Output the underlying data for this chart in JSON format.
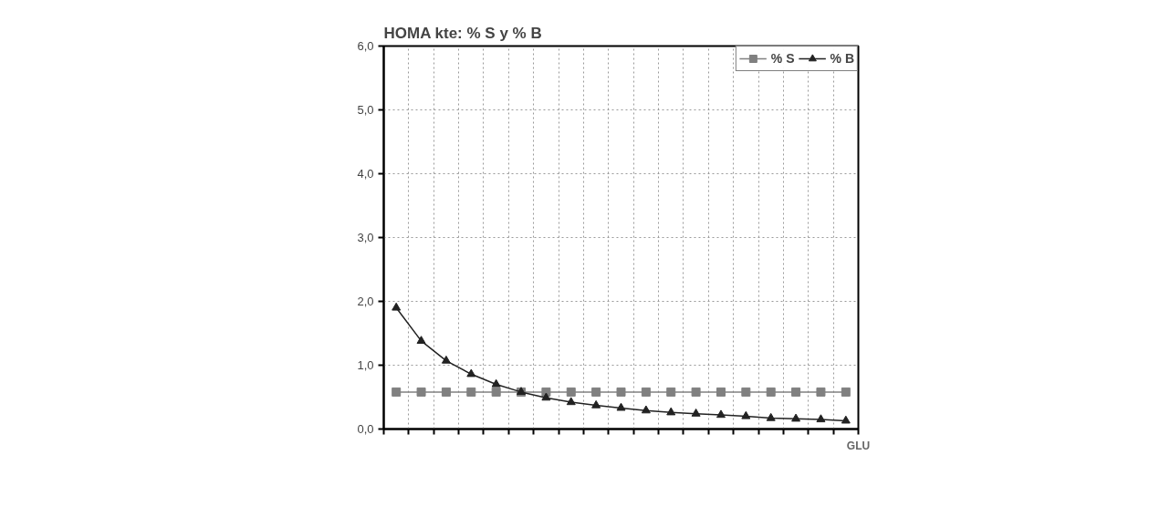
{
  "chart_data": {
    "type": "line",
    "title": "HOMA kte: % S y % B",
    "xlabel": "GLU",
    "categories": [
      null,
      null,
      null,
      null,
      null,
      null,
      null,
      null,
      null,
      null,
      null,
      null,
      null,
      null,
      null,
      null,
      null,
      null,
      null
    ],
    "series": [
      {
        "name": "% S",
        "color": "#808080",
        "marker": "square",
        "values": [
          0.58,
          0.58,
          0.58,
          0.58,
          0.58,
          0.58,
          0.58,
          0.58,
          0.58,
          0.58,
          0.58,
          0.58,
          0.58,
          0.58,
          0.58,
          0.58,
          0.58,
          0.58,
          0.58
        ]
      },
      {
        "name": "% B",
        "color": "#222222",
        "marker": "triangle",
        "values": [
          1.9,
          1.38,
          1.07,
          0.86,
          0.7,
          0.58,
          0.49,
          0.42,
          0.37,
          0.33,
          0.29,
          0.26,
          0.24,
          0.22,
          0.2,
          0.17,
          0.16,
          0.15,
          0.13
        ]
      }
    ],
    "ylim": [
      0,
      6
    ],
    "yticks": [
      {
        "value": 0,
        "label": "0,0"
      },
      {
        "value": 1,
        "label": "1,0"
      },
      {
        "value": 2,
        "label": "2,0"
      },
      {
        "value": 3,
        "label": "3,0"
      },
      {
        "value": 4,
        "label": "4,0"
      },
      {
        "value": 5,
        "label": "5,0"
      },
      {
        "value": 6,
        "label": "6,0"
      }
    ],
    "grid": true,
    "legend": "top right",
    "tick_labels": "y"
  }
}
